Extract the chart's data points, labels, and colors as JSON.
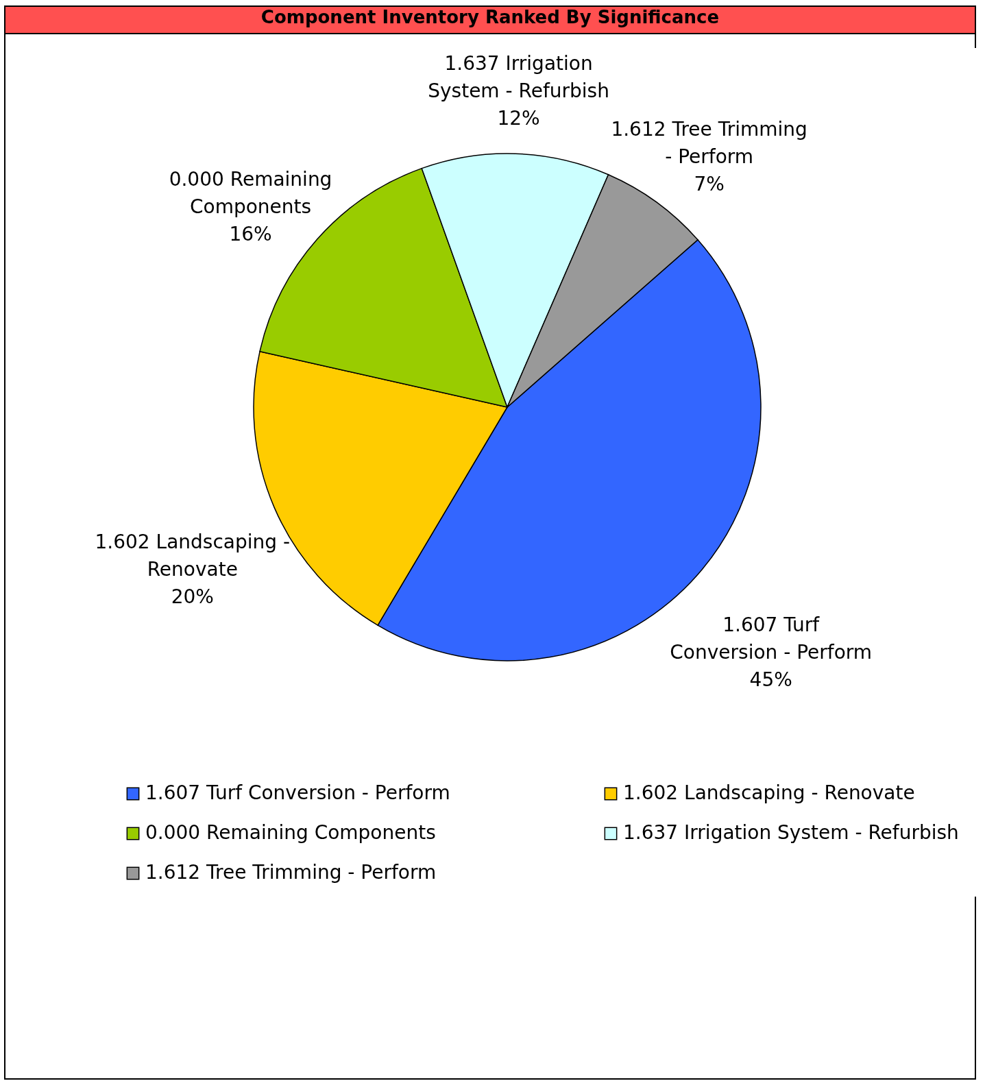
{
  "chart_data": {
    "type": "pie",
    "title": "Component Inventory Ranked By Significance",
    "categories": [
      "1.607 Turf Conversion - Perform",
      "1.602 Landscaping - Renovate",
      "0.000 Remaining Components",
      "1.637 Irrigation System - Refurbish",
      "1.612 Tree Trimming - Perform"
    ],
    "values": [
      45,
      20,
      16,
      12,
      7
    ],
    "value_labels": [
      "45%",
      "20%",
      "16%",
      "12%",
      "7%"
    ],
    "colors": [
      "#3366ff",
      "#ffcc00",
      "#99cc00",
      "#ccffff",
      "#999999"
    ],
    "legend": "bottom"
  }
}
